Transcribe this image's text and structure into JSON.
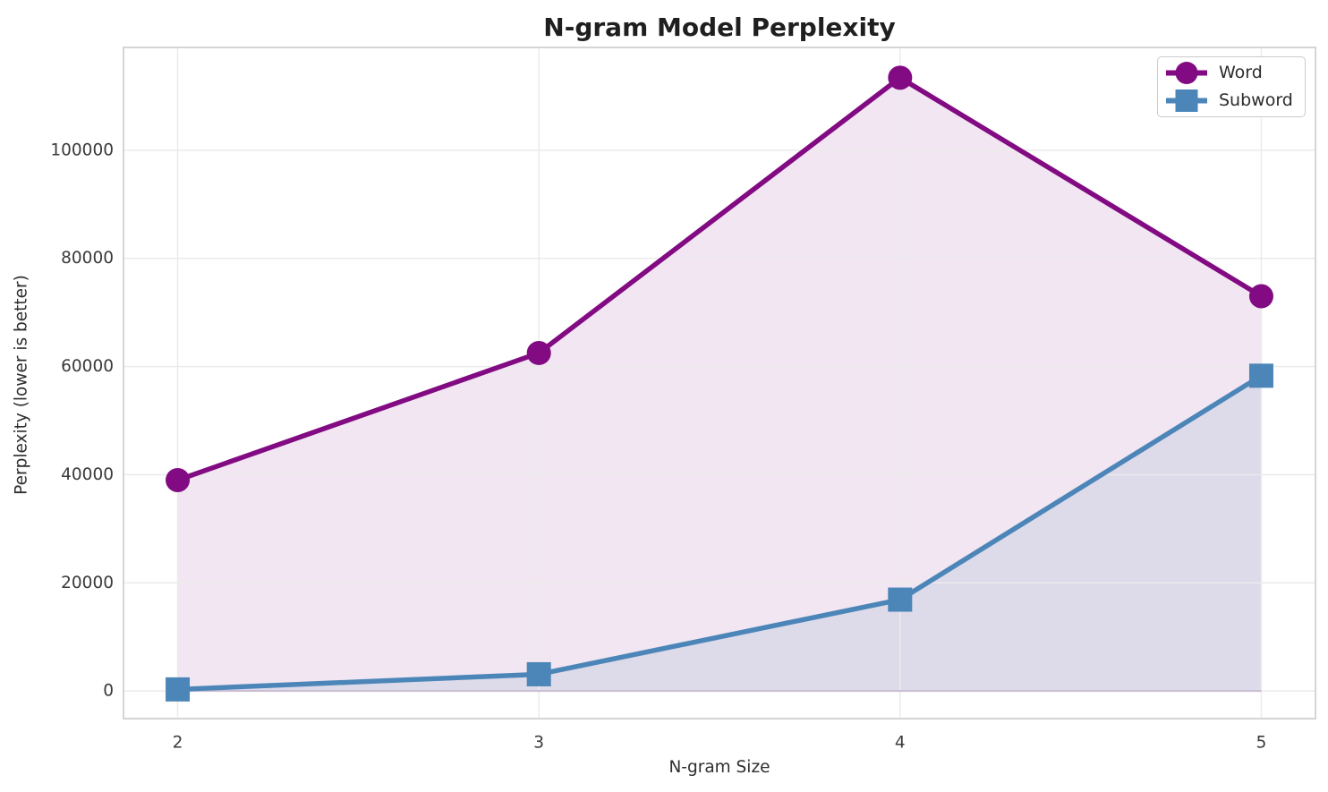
{
  "figure": {
    "title": "N-gram Model Perplexity",
    "xlabel": "N-gram Size",
    "ylabel": "Perplexity (lower is better)"
  },
  "chart_data": {
    "type": "line",
    "title": "N-gram Model Perplexity",
    "xlabel": "N-gram Size",
    "ylabel": "Perplexity (lower is better)",
    "x": [
      2,
      3,
      4,
      5
    ],
    "xticks": [
      "2",
      "3",
      "4",
      "5"
    ],
    "yticks": [
      0,
      20000,
      40000,
      60000,
      80000,
      100000
    ],
    "xlim": [
      1.85,
      5.15
    ],
    "ylim": [
      -5100,
      119000
    ],
    "grid": true,
    "legend_position": "upper right",
    "series": [
      {
        "name": "Word",
        "color": "#820a82",
        "marker": "circle",
        "values": [
          39000,
          62500,
          113400,
          73000
        ],
        "fill_to_zero": true,
        "fill_alpha": 0.1
      },
      {
        "name": "Subword",
        "color": "#4c86b8",
        "marker": "square",
        "values": [
          300,
          3100,
          16900,
          58300
        ],
        "fill_to_zero": true,
        "fill_alpha": 0.12
      }
    ],
    "styles": {
      "gridline_color": "#ebebeb",
      "spine_color": "#d5d5d5",
      "tick_label_color": "#3a3a3a",
      "baseline_edge_color": "rgba(123,83,150,0.30)"
    }
  }
}
